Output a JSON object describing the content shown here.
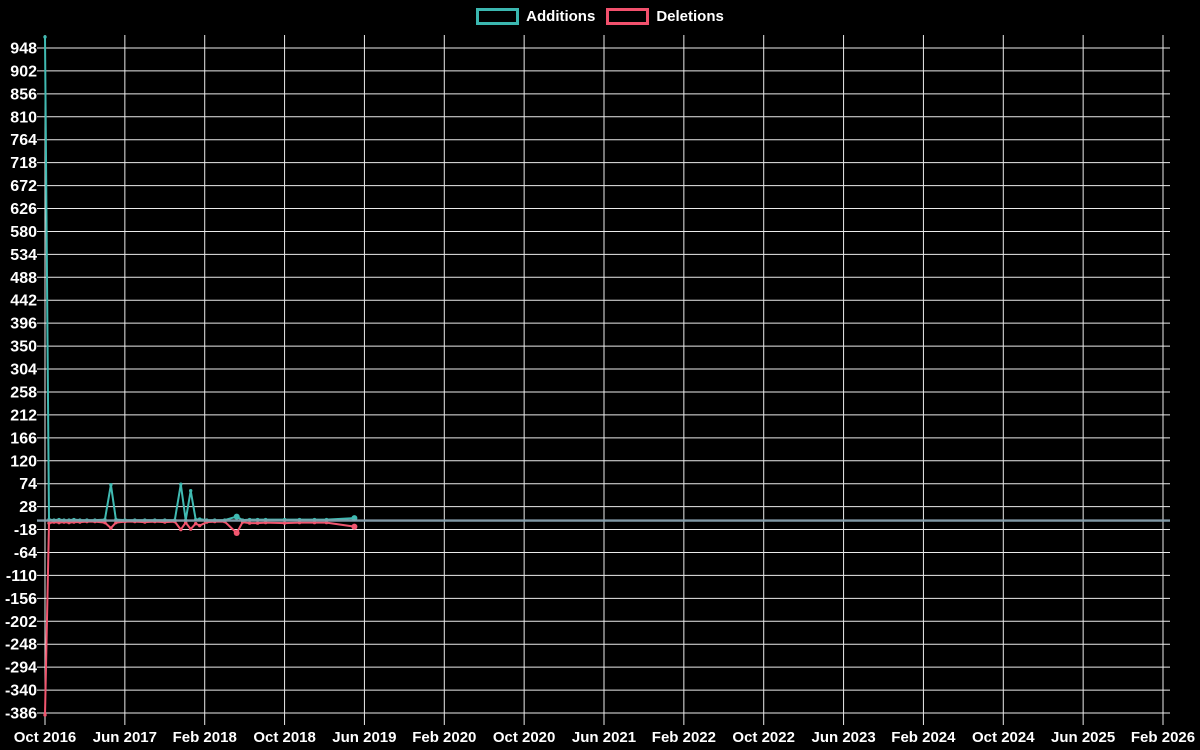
{
  "legend": {
    "items": [
      {
        "label": "Additions",
        "color": "#3bb7b0"
      },
      {
        "label": "Deletions",
        "color": "#f2516d"
      }
    ]
  },
  "chart_data": {
    "type": "line",
    "title": "",
    "xlabel": "",
    "ylabel": "",
    "grid": "on",
    "legend_position": "top-center",
    "background": "#000000",
    "grid_color": "#ffffff",
    "text_color": "#ffffff",
    "zero_line_color": "#86a1ae",
    "x_ticks": [
      "Oct 2016",
      "Jun 2017",
      "Feb 2018",
      "Oct 2018",
      "Jun 2019",
      "Feb 2020",
      "Oct 2020",
      "Jun 2021",
      "Feb 2022",
      "Oct 2022",
      "Jun 2023",
      "Feb 2024",
      "Oct 2024",
      "Jun 2025",
      "Feb 2026"
    ],
    "x_tick_interval_months": 8,
    "y_ticks": [
      948,
      902,
      856,
      810,
      764,
      718,
      672,
      626,
      580,
      534,
      488,
      442,
      396,
      350,
      304,
      258,
      212,
      166,
      120,
      74,
      28,
      -18,
      -64,
      -110,
      -156,
      -202,
      -248,
      -294,
      -340,
      -386
    ],
    "ylim": [
      -386,
      948
    ],
    "x_months": [
      0,
      0.4,
      0.9,
      1.4,
      1.9,
      2.4,
      2.9,
      3.5,
      4.2,
      5,
      6,
      6.6,
      7.1,
      8,
      9,
      10,
      11,
      12,
      13,
      13.6,
      14.1,
      14.6,
      15.1,
      15.5,
      16.2,
      17,
      18,
      19.2,
      19.8,
      20.5,
      21.3,
      22.1,
      24,
      25.5,
      27,
      28.2,
      31
    ],
    "series": [
      {
        "name": "Additions",
        "color": "#40bab2",
        "values": [
          970,
          2,
          1,
          2,
          1,
          1,
          2,
          1,
          1,
          1,
          2,
          72,
          2,
          1,
          1,
          1,
          1,
          1,
          1,
          73,
          1,
          60,
          2,
          3,
          1,
          1,
          1,
          8,
          1,
          2,
          2,
          2,
          2,
          2,
          2,
          2,
          5
        ]
      },
      {
        "name": "Deletions",
        "color": "#f2566f",
        "values": [
          -390,
          -5,
          -3,
          -4,
          -3,
          -4,
          -3,
          -3,
          -2,
          -2,
          -4,
          -15,
          -4,
          -2,
          -2,
          -3,
          -2,
          -3,
          -2,
          -18,
          -4,
          -17,
          -6,
          -10,
          -3,
          -2,
          -2,
          -25,
          -3,
          -5,
          -5,
          -4,
          -5,
          -4,
          -4,
          -4,
          -12
        ]
      }
    ],
    "big_marker_indices": [
      27,
      36
    ]
  }
}
